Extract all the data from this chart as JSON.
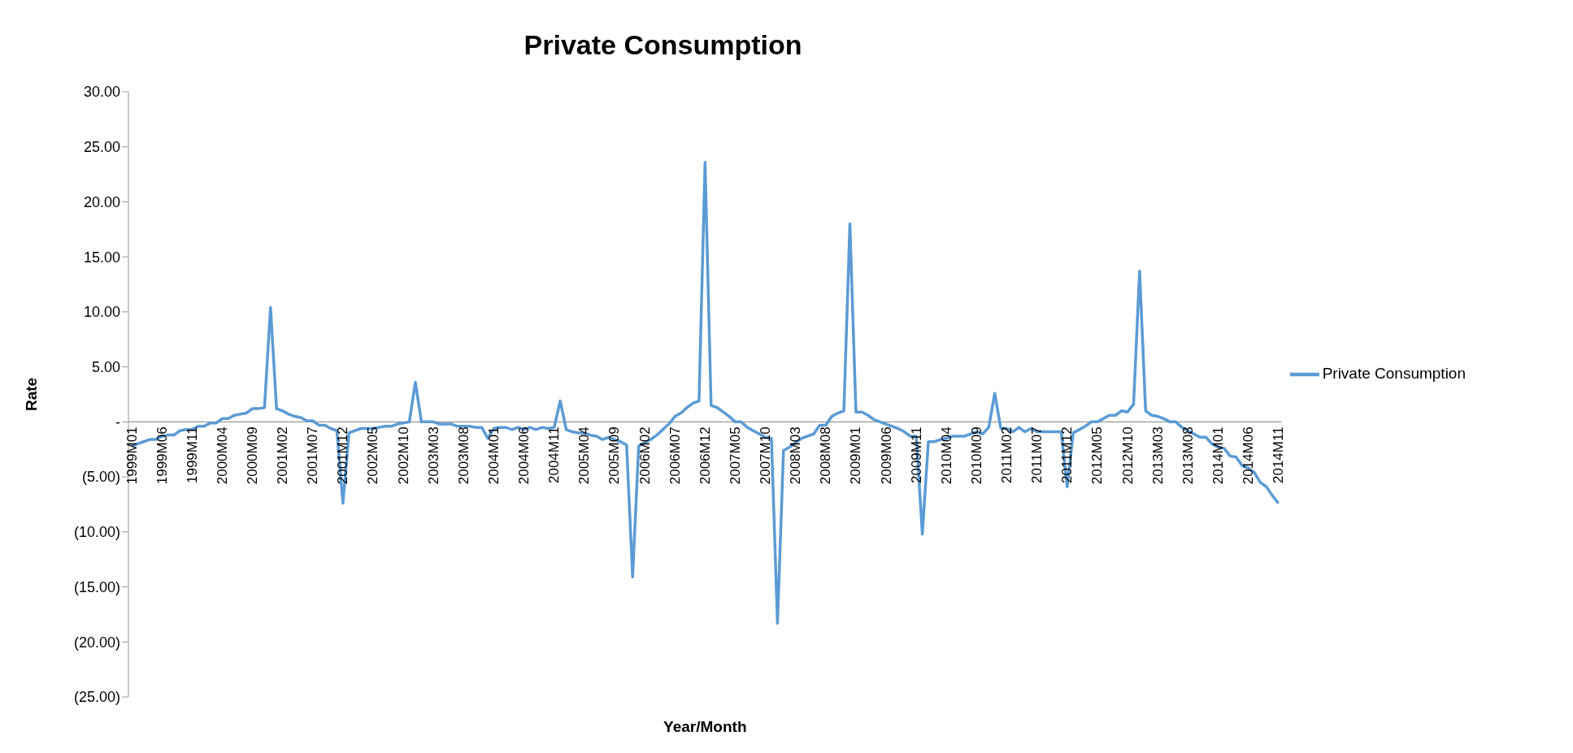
{
  "chart_data": {
    "type": "line",
    "title": "Private Consumption",
    "xlabel": "Year/Month",
    "ylabel": "Rate",
    "categories": [
      "1999M01",
      null,
      null,
      null,
      null,
      "1999M06",
      null,
      null,
      null,
      null,
      "1999M11",
      null,
      null,
      null,
      null,
      "2000M04",
      null,
      null,
      null,
      null,
      "2000M09",
      null,
      null,
      null,
      null,
      "2001M02",
      null,
      null,
      null,
      null,
      "2001M07",
      null,
      null,
      null,
      null,
      "2001M12",
      null,
      null,
      null,
      null,
      "2002M05",
      null,
      null,
      null,
      null,
      "2002M10",
      null,
      null,
      null,
      null,
      "2003M03",
      null,
      null,
      null,
      null,
      "2003M08",
      null,
      null,
      null,
      null,
      "2004M01",
      null,
      null,
      null,
      null,
      "2004M06",
      null,
      null,
      null,
      null,
      "2004M11",
      null,
      null,
      null,
      null,
      "2005M04",
      null,
      null,
      null,
      null,
      "2005M09",
      null,
      null,
      null,
      null,
      "2006M02",
      null,
      null,
      null,
      null,
      "2006M07",
      null,
      null,
      null,
      null,
      "2006M12",
      null,
      null,
      null,
      null,
      "2007M05",
      null,
      null,
      null,
      null,
      "2007M10",
      null,
      null,
      null,
      null,
      "2008M03",
      null,
      null,
      null,
      null,
      "2008M08",
      null,
      null,
      null,
      null,
      "2009M01",
      null,
      null,
      null,
      null,
      "2009M06",
      null,
      null,
      null,
      null,
      "2009M11",
      null,
      null,
      null,
      null,
      "2010M04",
      null,
      null,
      null,
      null,
      "2010M09",
      null,
      null,
      null,
      null,
      "2011M02",
      null,
      null,
      null,
      null,
      "2011M07",
      null,
      null,
      null,
      null,
      "2011M12",
      null,
      null,
      null,
      null,
      "2012M05",
      null,
      null,
      null,
      null,
      "2012M10",
      null,
      null,
      null,
      null,
      "2013M03",
      null,
      null,
      null,
      null,
      "2013M08",
      null,
      null,
      null,
      null,
      "2014M01",
      null,
      null,
      null,
      null,
      "2014M06",
      null,
      null,
      null,
      null,
      "2014M11"
    ],
    "series": [
      {
        "name": "Private Consumption",
        "color": "#5b9bd5",
        "values": [
          -2.2,
          -2.0,
          -1.8,
          -1.6,
          -1.6,
          -1.3,
          -1.2,
          -1.2,
          -0.8,
          -0.7,
          -0.7,
          -0.4,
          -0.4,
          -0.1,
          -0.1,
          0.3,
          0.3,
          0.6,
          0.7,
          0.8,
          1.2,
          1.2,
          1.3,
          10.4,
          1.2,
          1.0,
          0.7,
          0.5,
          0.4,
          0.1,
          0.1,
          -0.3,
          -0.3,
          -0.6,
          -0.8,
          -7.4,
          -1.0,
          -0.8,
          -0.6,
          -0.6,
          -0.6,
          -0.5,
          -0.4,
          -0.4,
          -0.2,
          -0.1,
          0.0,
          3.6,
          0.0,
          0.0,
          0.0,
          -0.2,
          -0.2,
          -0.2,
          -0.4,
          -0.4,
          -0.4,
          -0.5,
          -0.5,
          -1.5,
          -0.6,
          -0.5,
          -0.5,
          -0.7,
          -0.5,
          -0.7,
          -0.5,
          -0.7,
          -0.5,
          -0.6,
          -0.5,
          1.9,
          -0.7,
          -0.9,
          -1.0,
          -1.0,
          -1.2,
          -1.3,
          -1.6,
          -1.4,
          -1.6,
          -1.8,
          -2.1,
          -14.1,
          -2.2,
          -1.9,
          -1.6,
          -1.2,
          -0.7,
          -0.2,
          0.5,
          0.8,
          1.3,
          1.7,
          1.9,
          23.6,
          1.5,
          1.3,
          0.9,
          0.5,
          0.0,
          0.0,
          -0.5,
          -0.8,
          -1.1,
          -1.4,
          -1.5,
          -18.3,
          -2.6,
          -2.3,
          -1.9,
          -1.5,
          -1.3,
          -1.1,
          -0.3,
          -0.3,
          0.5,
          0.8,
          1.0,
          18.0,
          0.9,
          0.9,
          0.6,
          0.2,
          0.0,
          -0.2,
          -0.4,
          -0.6,
          -0.9,
          -1.3,
          -1.3,
          -10.2,
          -1.8,
          -1.8,
          -1.6,
          -1.5,
          -1.3,
          -1.3,
          -1.3,
          -1.1,
          -0.9,
          -1.1,
          -0.5,
          2.6,
          -0.6,
          -0.6,
          -0.9,
          -0.5,
          -0.9,
          -0.6,
          -0.9,
          -0.9,
          -0.9,
          -0.9,
          -0.9,
          -5.9,
          -1.0,
          -0.7,
          -0.4,
          0.0,
          0.0,
          0.3,
          0.6,
          0.6,
          1.0,
          0.9,
          1.6,
          13.7,
          1.0,
          0.6,
          0.5,
          0.3,
          0.0,
          0.0,
          -0.5,
          -0.8,
          -1.1,
          -1.4,
          -1.4,
          -2.0,
          -2.3,
          -2.4,
          -3.1,
          -3.2,
          -4.0,
          -4.2,
          -4.6,
          -5.5,
          -5.9,
          -6.7,
          -7.4
        ]
      }
    ],
    "ylim": [
      -25,
      30
    ],
    "yticks": [
      {
        "value": -25,
        "label": "(25.00)"
      },
      {
        "value": -20,
        "label": "(20.00)"
      },
      {
        "value": -15,
        "label": "(15.00)"
      },
      {
        "value": -10,
        "label": "(10.00)"
      },
      {
        "value": -5,
        "label": "(5.00)"
      },
      {
        "value": 0,
        "label": "-"
      },
      {
        "value": 5,
        "label": "5.00"
      },
      {
        "value": 10,
        "label": "10.00"
      },
      {
        "value": 15,
        "label": "15.00"
      },
      {
        "value": 20,
        "label": "20.00"
      },
      {
        "value": 25,
        "label": "25.00"
      },
      {
        "value": 30,
        "label": "30.00"
      }
    ],
    "legend": "right",
    "line_style": "solid"
  }
}
